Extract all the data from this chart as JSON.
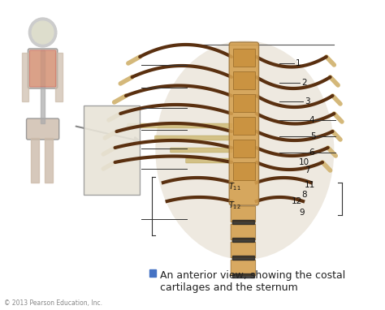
{
  "bg_color": "#f5f5f5",
  "title_text": "An anterior view, showing the costal\ncartilages and the sternum",
  "title_icon_color": "#4472c4",
  "caption_color": "#222222",
  "caption_fontsize": 9,
  "copyright_text": "© 2013 Pearson Education, Inc.",
  "copyright_fontsize": 5.5,
  "left_labels": [
    "",
    "",
    "",
    "",
    "",
    ""
  ],
  "right_numbers": [
    "1",
    "2",
    "3",
    "4",
    "5",
    "6",
    "7",
    "8",
    "9",
    "10",
    "11",
    "12"
  ],
  "vertebra_labels": [
    "T₁₁",
    "T₁₂"
  ],
  "blank_box_color": "#e8e4d8",
  "line_color": "#333333",
  "skeleton_outline_color": "#555555"
}
